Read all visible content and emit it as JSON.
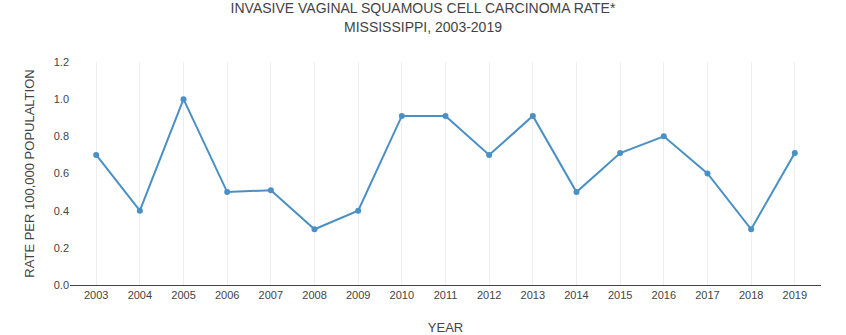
{
  "chart_data": {
    "type": "line",
    "title": "INVASIVE VAGINAL SQUAMOUS CELL CARCINOMA RATE*",
    "subtitle": "MISSISSIPPI, 2003-2019",
    "x_label": "YEAR",
    "y_label": "RATE PER 100,000 POPULALTION",
    "x": [
      2003,
      2004,
      2005,
      2006,
      2007,
      2008,
      2009,
      2010,
      2011,
      2012,
      2013,
      2014,
      2015,
      2016,
      2017,
      2018,
      2019
    ],
    "values": [
      0.7,
      0.4,
      1.0,
      0.5,
      0.51,
      0.3,
      0.4,
      0.91,
      0.91,
      0.7,
      0.91,
      0.5,
      0.71,
      0.8,
      0.6,
      0.3,
      0.71
    ],
    "color": "#4a90c4",
    "marker": "circle",
    "xlim": [
      2002.4,
      2019.6
    ],
    "xticks": [
      2003,
      2004,
      2005,
      2006,
      2007,
      2008,
      2009,
      2010,
      2011,
      2012,
      2013,
      2014,
      2015,
      2016,
      2017,
      2018,
      2019
    ],
    "ylim": [
      0.0,
      1.2
    ],
    "yticks": [
      {
        "value": 0.0,
        "label": "0.0"
      },
      0.2,
      0.4,
      0.6,
      0.8,
      {
        "value": 1.0,
        "label": "1.0"
      },
      1.2
    ],
    "grid": "x"
  }
}
